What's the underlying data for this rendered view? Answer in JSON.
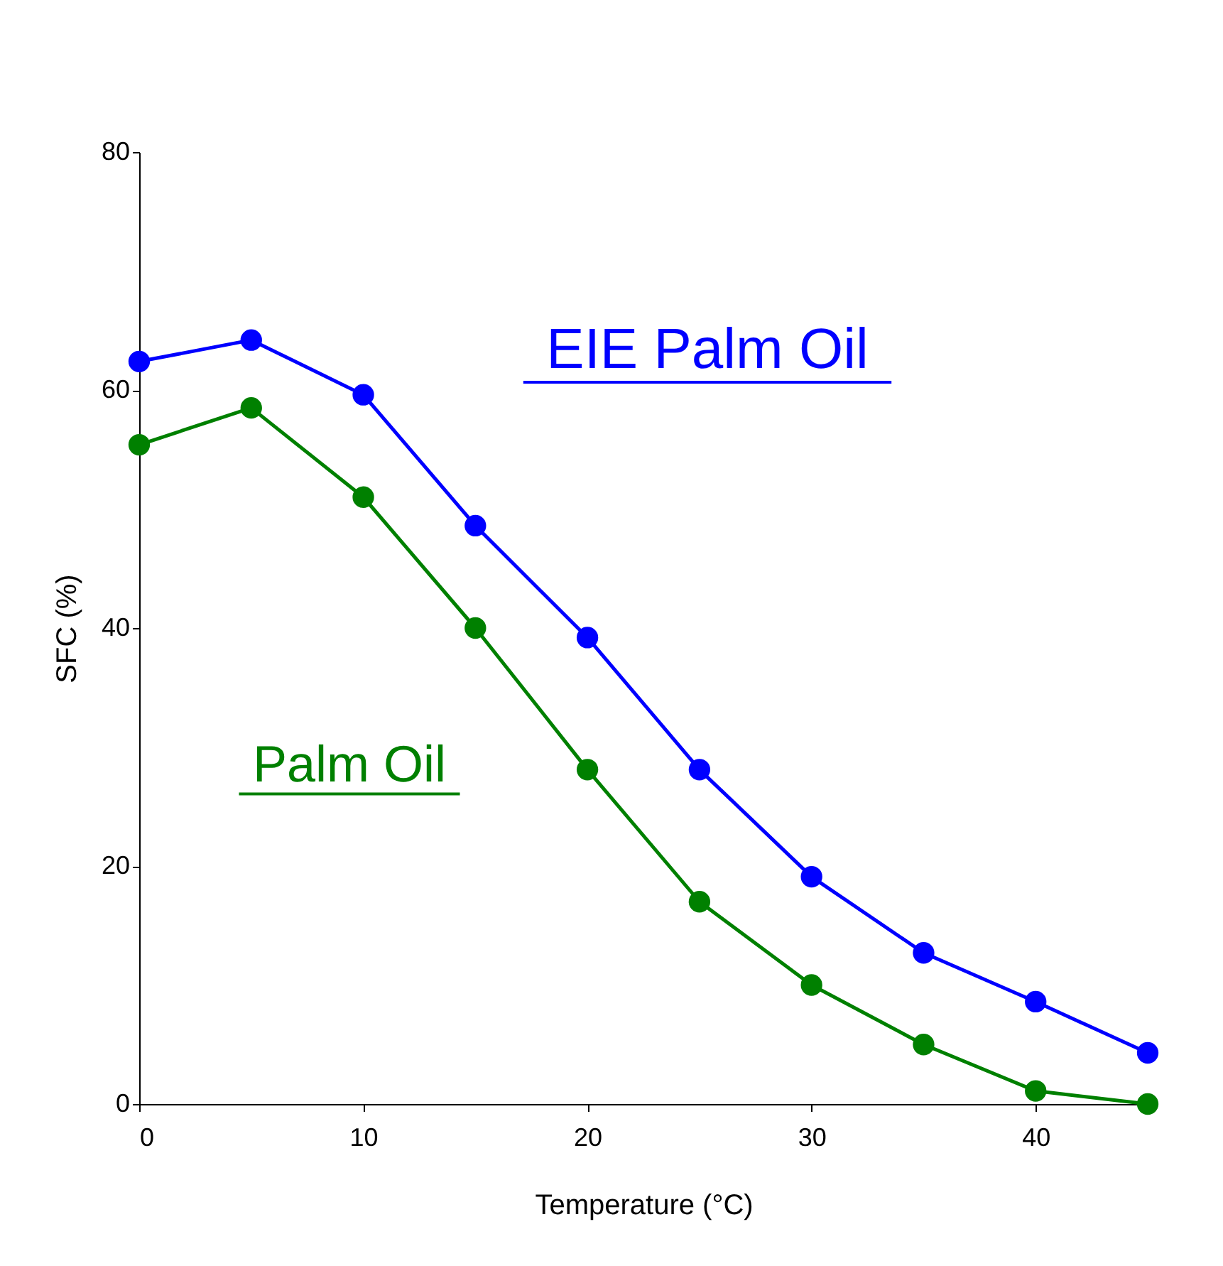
{
  "chart_data": {
    "type": "line",
    "xlabel": "Temperature (°C)",
    "ylabel": "SFC (%)",
    "x": [
      0,
      5,
      10,
      15,
      20,
      25,
      30,
      35,
      40,
      45
    ],
    "series": [
      {
        "name": "EIE Palm Oil",
        "color": "#0000ff",
        "values": [
          62.4,
          64.2,
          59.6,
          48.6,
          39.2,
          28.1,
          19.1,
          12.7,
          8.6,
          4.3
        ]
      },
      {
        "name": "Palm Oil",
        "color": "#008000",
        "values": [
          55.4,
          58.5,
          51.0,
          40.0,
          28.1,
          17.0,
          10.0,
          5.0,
          1.1,
          0
        ]
      }
    ],
    "xlim": [
      0,
      45
    ],
    "xticks": [
      0,
      10,
      20,
      30,
      40
    ],
    "ylim": [
      0,
      80
    ],
    "yticks": [
      0,
      20,
      40,
      60,
      80
    ],
    "grid": false,
    "marker": "circle",
    "line_style": "solid"
  }
}
